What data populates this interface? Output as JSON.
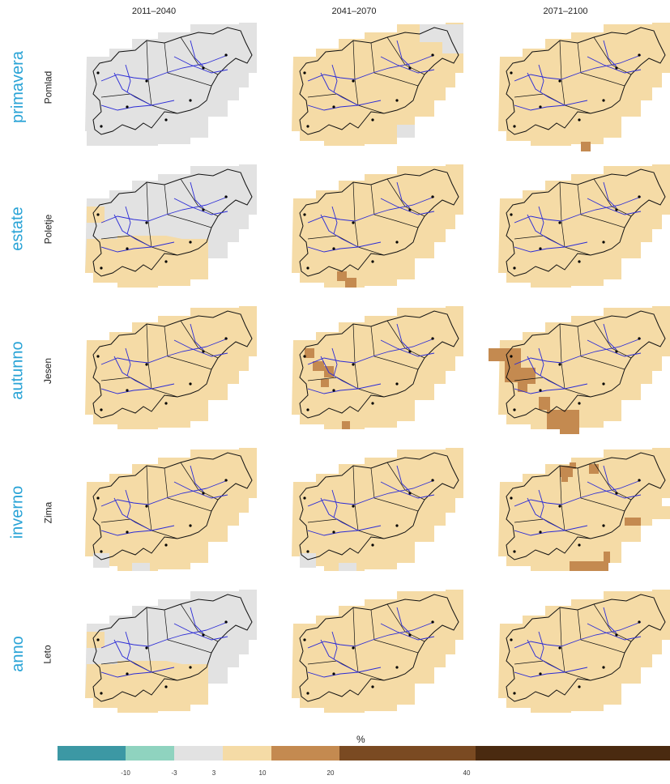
{
  "columns": [
    "2011–2040",
    "2041–2070",
    "2071–2100"
  ],
  "rows": [
    {
      "it": "primavera",
      "sl": "Pomlad"
    },
    {
      "it": "estate",
      "sl": "Poletje"
    },
    {
      "it": "autunno",
      "sl": "Jesen"
    },
    {
      "it": "inverno",
      "sl": "Zima"
    },
    {
      "it": "anno",
      "sl": "Leto"
    }
  ],
  "panels": [
    [
      "gray-north",
      "tan-gray-ne",
      "tan-dot"
    ],
    [
      "gray-north-tan-south",
      "tan-brown-south",
      "tan"
    ],
    [
      "tan",
      "tan-brown-west",
      "tan-brown-west-south"
    ],
    [
      "tan-gray-sw",
      "tan-gray-sw",
      "tan-brown-north-east"
    ],
    [
      "gray-north-tan-south",
      "tan",
      "tan"
    ]
  ],
  "legend": {
    "unit": "%",
    "ticks": [
      "-10",
      "-3",
      "3",
      "10",
      "20",
      "40"
    ],
    "colors": [
      "#3c98a4",
      "#8fd3bf",
      "#e2e2e2",
      "#f5dba6",
      "#c48a50",
      "#7a4a22",
      "#4a2a10"
    ]
  },
  "colors": {
    "tan": "#f5dba6",
    "gray": "#e2e2e2",
    "brown": "#c48a50",
    "river": "#2b2bd6",
    "border": "#111111"
  }
}
